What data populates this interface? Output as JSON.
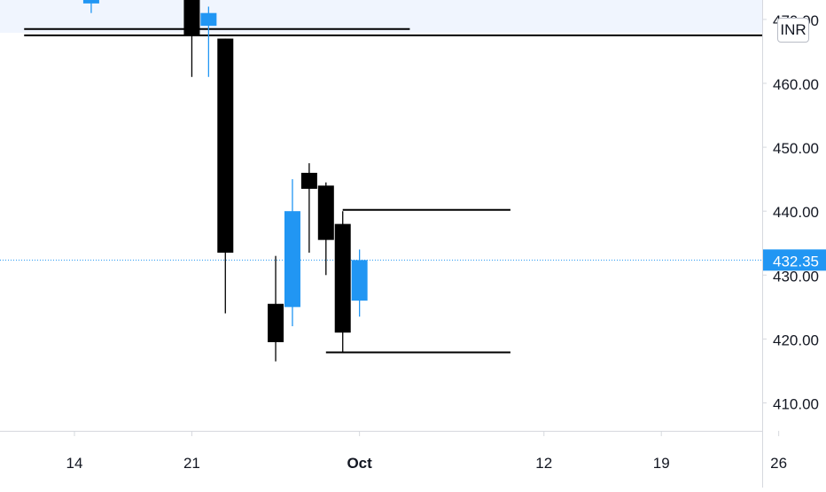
{
  "chart_data": {
    "type": "candlestick",
    "currency": "INR",
    "last_price": 432.35,
    "last_price_label": "432.35",
    "y_ticks": [
      {
        "value": 410,
        "label": "410.00"
      },
      {
        "value": 420,
        "label": "420.00"
      },
      {
        "value": 430,
        "label": "430.00"
      },
      {
        "value": 440,
        "label": "440.00"
      },
      {
        "value": 450,
        "label": "450.00"
      },
      {
        "value": 460,
        "label": "460.00"
      },
      {
        "value": 470,
        "label": "470.00"
      }
    ],
    "x_ticks": [
      {
        "day": 14,
        "label": "14",
        "bold": false
      },
      {
        "day": 21,
        "label": "21",
        "bold": false
      },
      {
        "day": 31,
        "label": "Oct",
        "bold": true
      },
      {
        "day": 42,
        "label": "12",
        "bold": false
      },
      {
        "day": 49,
        "label": "19",
        "bold": false
      },
      {
        "day": 56,
        "label": "26",
        "bold": false
      }
    ],
    "candles": [
      {
        "day": 15,
        "open": 472.5,
        "high": 476.0,
        "low": 471.0,
        "close": 474.5,
        "direction": "up"
      },
      {
        "day": 21,
        "open": 474.0,
        "high": 475.0,
        "low": 461.0,
        "close": 467.5,
        "direction": "down"
      },
      {
        "day": 22,
        "open": 469.0,
        "high": 472.0,
        "low": 461.0,
        "close": 471.0,
        "direction": "up"
      },
      {
        "day": 23,
        "open": 467.0,
        "high": 467.0,
        "low": 424.0,
        "close": 433.5,
        "direction": "down"
      },
      {
        "day": 26,
        "open": 425.5,
        "high": 433.0,
        "low": 416.5,
        "close": 419.5,
        "direction": "down"
      },
      {
        "day": 27,
        "open": 425.0,
        "high": 445.0,
        "low": 422.0,
        "close": 440.0,
        "direction": "up"
      },
      {
        "day": 28,
        "open": 446.0,
        "high": 447.5,
        "low": 433.5,
        "close": 443.5,
        "direction": "down"
      },
      {
        "day": 29,
        "open": 444.0,
        "high": 444.5,
        "low": 430.0,
        "close": 435.5,
        "direction": "down"
      },
      {
        "day": 30,
        "open": 438.0,
        "high": 440.0,
        "low": 418.0,
        "close": 421.0,
        "direction": "down"
      },
      {
        "day": 31,
        "open": 426.0,
        "high": 434.0,
        "low": 423.5,
        "close": 432.35,
        "direction": "up"
      }
    ],
    "horizontal_segments": [
      {
        "price": 468.5,
        "x_from_day": 11,
        "x_to_day": 34
      },
      {
        "price": 467.5,
        "x_from_day": 11,
        "x_to_day": 60
      },
      {
        "price": 440.2,
        "x_from_day": 30,
        "x_to_day": 40
      },
      {
        "price": 417.9,
        "x_from_day": 29,
        "x_to_day": 40
      }
    ],
    "colors": {
      "up": "#2196f3",
      "down": "#000000",
      "last_price_line": "#2196f3",
      "last_price_tag": "#2196f3",
      "axis_text": "#131722",
      "axis_line": "#d6d8de",
      "top_band": "#f0f5fe"
    },
    "ylim": [
      403,
      476
    ],
    "xlim": [
      11,
      60
    ],
    "grid": false,
    "legend": "none"
  }
}
